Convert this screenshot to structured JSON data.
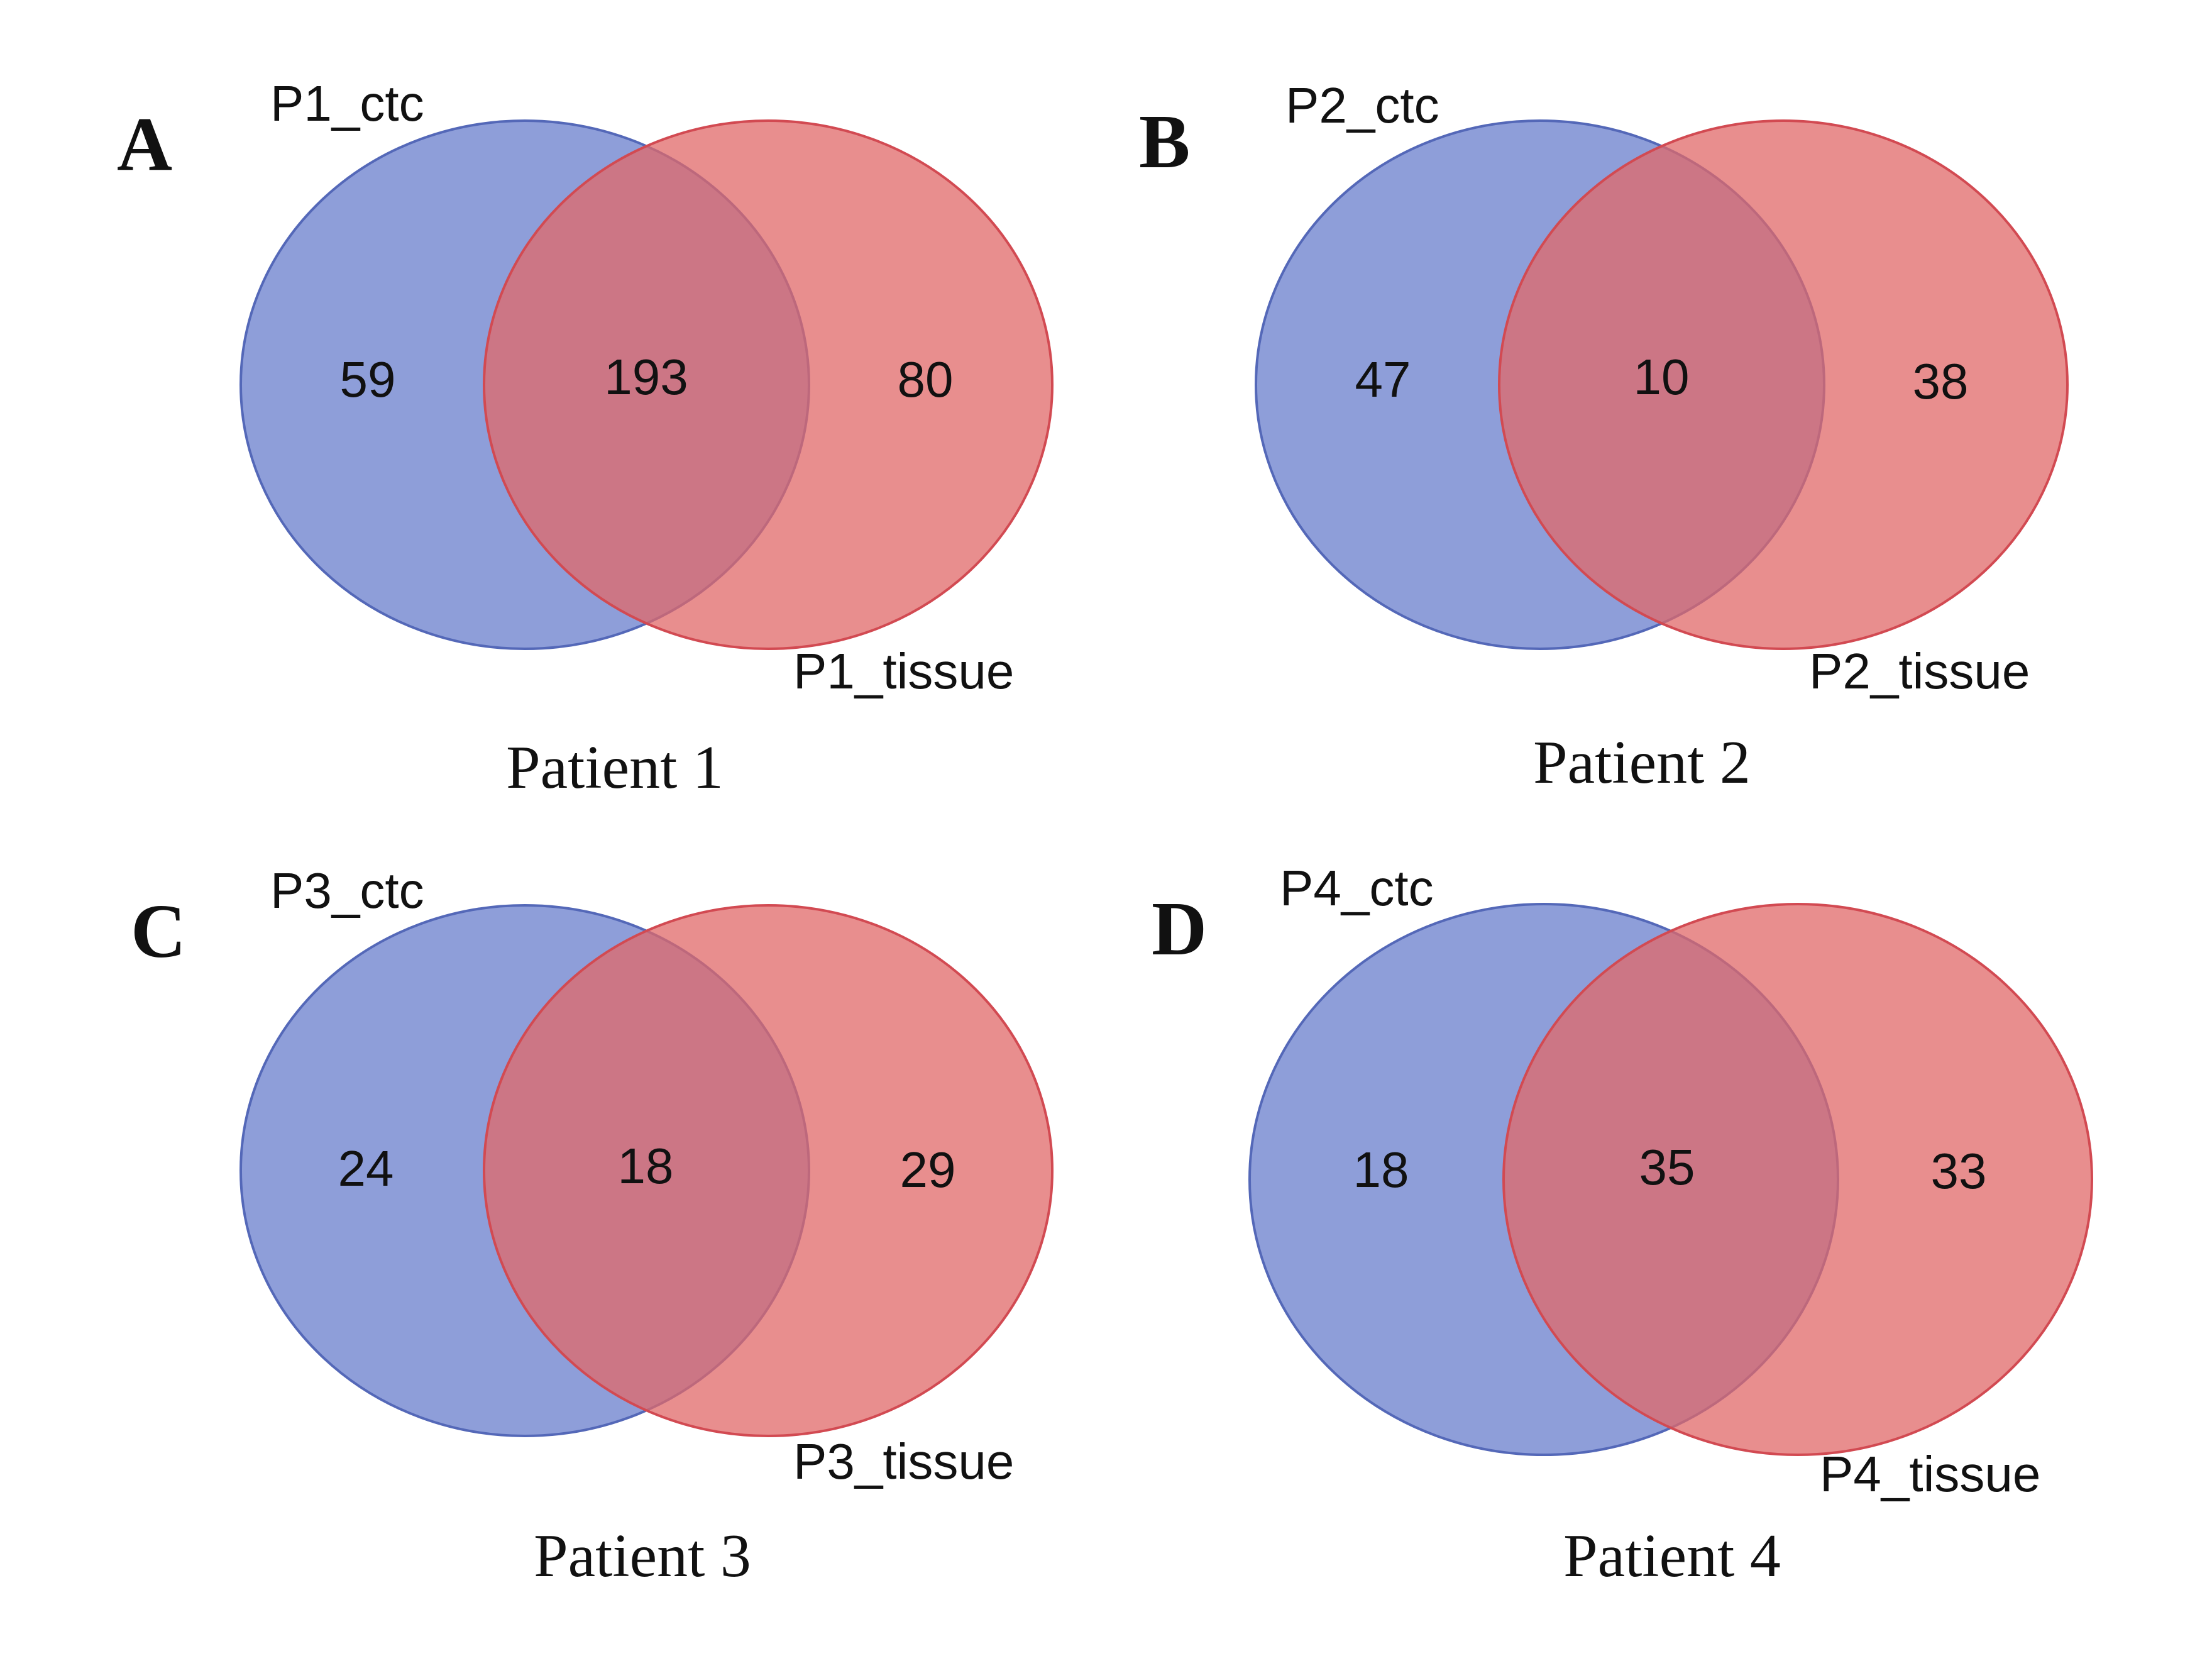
{
  "chart_data": [
    {
      "type": "venn",
      "panel": "A",
      "title": "Patient 1",
      "sets": [
        {
          "name": "P1_ctc",
          "color": "#7286CF"
        },
        {
          "name": "P1_tissue",
          "color": "#E06868"
        }
      ],
      "regions": {
        "only_first": 59,
        "intersection": 193,
        "only_second": 80
      }
    },
    {
      "type": "venn",
      "panel": "B",
      "title": "Patient 2",
      "sets": [
        {
          "name": "P2_ctc",
          "color": "#7286CF"
        },
        {
          "name": "P2_tissue",
          "color": "#E06868"
        }
      ],
      "regions": {
        "only_first": 47,
        "intersection": 10,
        "only_second": 38
      }
    },
    {
      "type": "venn",
      "panel": "C",
      "title": "Patient 3",
      "sets": [
        {
          "name": "P3_ctc",
          "color": "#7286CF"
        },
        {
          "name": "P3_tissue",
          "color": "#E06868"
        }
      ],
      "regions": {
        "only_first": 24,
        "intersection": 18,
        "only_second": 29
      }
    },
    {
      "type": "venn",
      "panel": "D",
      "title": "Patient 4",
      "sets": [
        {
          "name": "P4_ctc",
          "color": "#7286CF"
        },
        {
          "name": "P4_tissue",
          "color": "#E06868"
        }
      ],
      "regions": {
        "only_first": 18,
        "intersection": 35,
        "only_second": 33
      }
    }
  ]
}
